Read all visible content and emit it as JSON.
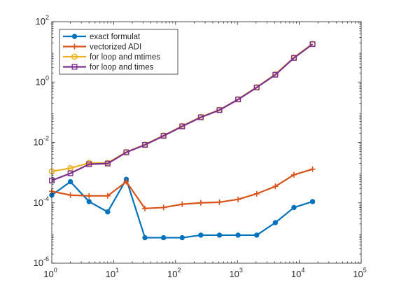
{
  "chart_data": {
    "type": "line",
    "xscale": "log",
    "yscale": "log",
    "xlim": [
      1,
      100000
    ],
    "ylim": [
      1e-06,
      100
    ],
    "grid": false,
    "legend_position": "top-left",
    "xticks": [
      {
        "value": 1,
        "base": "10",
        "exp": "0"
      },
      {
        "value": 10,
        "base": "10",
        "exp": "1"
      },
      {
        "value": 100,
        "base": "10",
        "exp": "2"
      },
      {
        "value": 1000,
        "base": "10",
        "exp": "3"
      },
      {
        "value": 10000,
        "base": "10",
        "exp": "4"
      },
      {
        "value": 100000,
        "base": "10",
        "exp": "5"
      }
    ],
    "yticks": [
      {
        "value": 1e-06,
        "base": "10",
        "exp": "-6"
      },
      {
        "value": 0.0001,
        "base": "10",
        "exp": "-4"
      },
      {
        "value": 0.01,
        "base": "10",
        "exp": "-2"
      },
      {
        "value": 1,
        "base": "10",
        "exp": "0"
      },
      {
        "value": 100,
        "base": "10",
        "exp": "2"
      }
    ],
    "x": [
      1,
      2,
      4,
      8,
      16,
      32,
      64,
      128,
      256,
      512,
      1024,
      2048,
      4096,
      8192,
      16384
    ],
    "series": [
      {
        "name": "exact formulat",
        "color": "#0072BD",
        "marker": "circle",
        "values": [
          0.00018,
          0.0005,
          0.00011,
          5e-05,
          0.0006,
          7e-06,
          7e-06,
          7e-06,
          8.5e-06,
          8.5e-06,
          8.5e-06,
          8.5e-06,
          2.2e-05,
          7e-05,
          0.00011
        ]
      },
      {
        "name": "vectorized ADI",
        "color": "#D95319",
        "marker": "plus",
        "values": [
          0.00024,
          0.00018,
          0.00017,
          0.00017,
          0.0005,
          6.5e-05,
          7e-05,
          9e-05,
          0.0001,
          0.000105,
          0.00013,
          0.0002,
          0.00035,
          0.00085,
          0.0013
        ]
      },
      {
        "name": "for loop and mtimes",
        "color": "#EDB120",
        "marker": "circle-open",
        "values": [
          0.0011,
          0.0014,
          0.0021,
          0.0021,
          0.0048,
          0.0085,
          0.017,
          0.035,
          0.07,
          0.12,
          0.27,
          0.68,
          1.8,
          6.5,
          18.5
        ]
      },
      {
        "name": "for loop and times",
        "color": "#7E2F8E",
        "marker": "square",
        "values": [
          0.00055,
          0.00095,
          0.0019,
          0.002,
          0.0047,
          0.0083,
          0.0165,
          0.034,
          0.068,
          0.118,
          0.265,
          0.66,
          1.75,
          6.3,
          18
        ]
      }
    ]
  }
}
